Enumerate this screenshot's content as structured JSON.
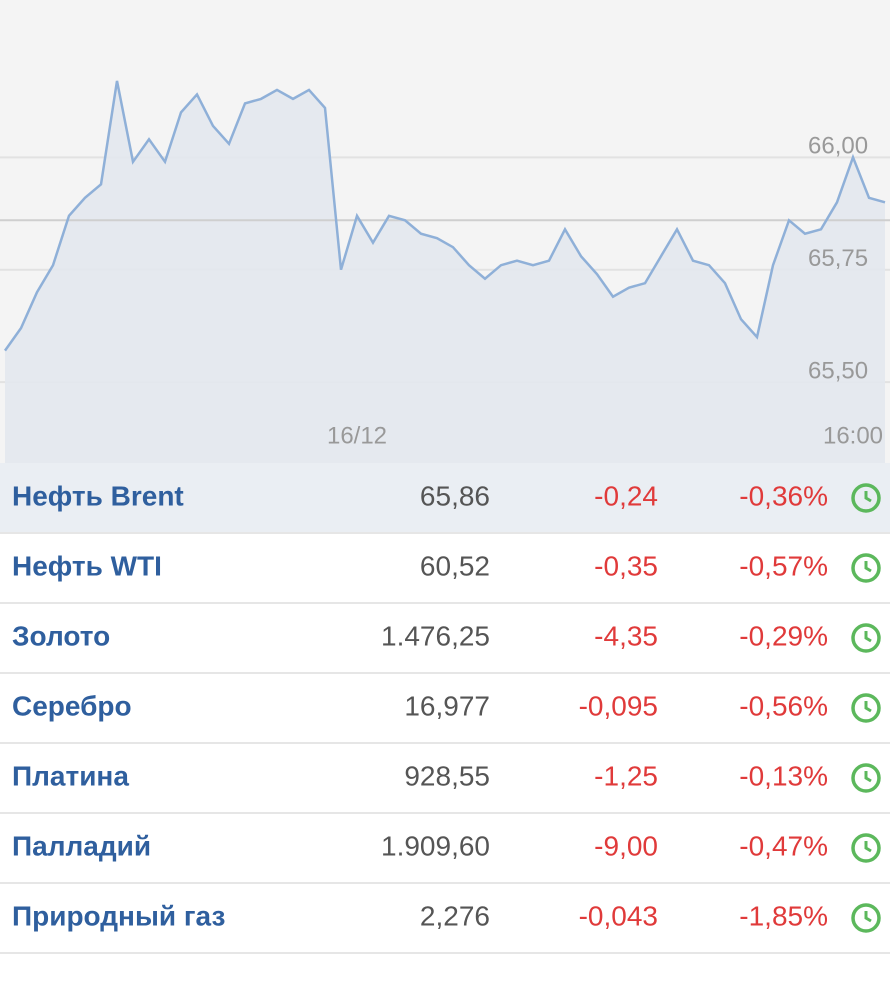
{
  "chart_data": {
    "type": "line",
    "categories": [
      null,
      null,
      null,
      null,
      null,
      null,
      null,
      null,
      null,
      null,
      null,
      null,
      null,
      null,
      null,
      null,
      null,
      null,
      null,
      null,
      null,
      null,
      "16/12",
      null,
      null,
      null,
      null,
      null,
      null,
      null,
      null,
      null,
      null,
      null,
      null,
      null,
      null,
      null,
      null,
      null,
      null,
      null,
      null,
      null,
      null,
      null,
      null,
      null,
      null,
      null,
      null,
      null,
      null,
      "16:00",
      null,
      null
    ],
    "values": [
      65.57,
      65.62,
      65.7,
      65.76,
      65.87,
      65.91,
      65.94,
      66.17,
      65.99,
      66.04,
      65.99,
      66.1,
      66.14,
      66.07,
      66.03,
      66.12,
      66.13,
      66.15,
      66.13,
      66.15,
      66.11,
      65.75,
      65.87,
      65.81,
      65.87,
      65.86,
      65.83,
      65.82,
      65.8,
      65.76,
      65.73,
      65.76,
      65.77,
      65.76,
      65.77,
      65.84,
      65.78,
      65.74,
      65.69,
      65.71,
      65.72,
      65.78,
      65.84,
      65.77,
      65.76,
      65.72,
      65.64,
      65.6,
      65.76,
      65.86,
      65.83,
      65.84,
      65.9,
      66.0,
      65.91,
      65.9
    ],
    "color": "#8fb0d8",
    "ylim": [
      65.32,
      66.35
    ],
    "yticks": [
      {
        "value": 65.5,
        "label": "65,50"
      },
      {
        "value": 65.75,
        "label": "65,75"
      },
      {
        "value": 66,
        "label": "66,00"
      }
    ],
    "current_line": 65.86,
    "grid": true
  },
  "table": {
    "rows": [
      [
        "Нефть Brent",
        "65,86",
        "-0,24",
        "-0,36%"
      ],
      [
        "Нефть WTI",
        "60,52",
        "-0,35",
        "-0,57%"
      ],
      [
        "Золото",
        "1.476,25",
        "-4,35",
        "-0,29%"
      ],
      [
        "Серебро",
        "16,977",
        "-0,095",
        "-0,56%"
      ],
      [
        "Платина",
        "928,55",
        "-1,25",
        "-0,13%"
      ],
      [
        "Палладий",
        "1.909,60",
        "-9,00",
        "-0,47%"
      ],
      [
        "Природный газ",
        "2,276",
        "-0,043",
        "-1,85%"
      ]
    ]
  }
}
